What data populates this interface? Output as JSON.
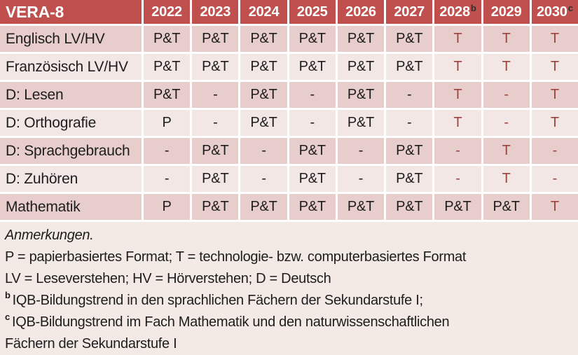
{
  "colors": {
    "header_bg": "#C0504D",
    "band_dark": "#E7CDCB",
    "band_light": "#F3E7E5",
    "notes_bg": "#F3EAE6",
    "red_text": "#9E423D",
    "header_text": "#FFFFFF",
    "body_text": "#1D1D1D",
    "border": "#FFFFFF"
  },
  "table": {
    "corner_label": "VERA-8",
    "columns": [
      {
        "label": "2022",
        "sup": ""
      },
      {
        "label": "2023",
        "sup": ""
      },
      {
        "label": "2024",
        "sup": ""
      },
      {
        "label": "2025",
        "sup": ""
      },
      {
        "label": "2026",
        "sup": ""
      },
      {
        "label": "2027",
        "sup": ""
      },
      {
        "label": "2028",
        "sup": "b"
      },
      {
        "label": "2029",
        "sup": ""
      },
      {
        "label": "2030",
        "sup": "c"
      }
    ],
    "rows": [
      {
        "label": "Englisch LV/HV",
        "values": [
          "P&T",
          "P&T",
          "P&T",
          "P&T",
          "P&T",
          "P&T",
          "T",
          "T",
          "T"
        ],
        "red": [
          false,
          false,
          false,
          false,
          false,
          false,
          true,
          true,
          true
        ]
      },
      {
        "label": "Französisch LV/HV",
        "values": [
          "P&T",
          "P&T",
          "P&T",
          "P&T",
          "P&T",
          "P&T",
          "T",
          "T",
          "T"
        ],
        "red": [
          false,
          false,
          false,
          false,
          false,
          false,
          true,
          true,
          true
        ]
      },
      {
        "label": "D: Lesen",
        "values": [
          "P&T",
          "-",
          "P&T",
          "-",
          "P&T",
          "-",
          "T",
          "-",
          "T"
        ],
        "red": [
          false,
          false,
          false,
          false,
          false,
          false,
          true,
          true,
          true
        ]
      },
      {
        "label": "D: Orthografie",
        "values": [
          "P",
          "-",
          "P&T",
          "-",
          "P&T",
          "-",
          "T",
          "-",
          "T"
        ],
        "red": [
          false,
          false,
          false,
          false,
          false,
          false,
          true,
          true,
          true
        ]
      },
      {
        "label": "D: Sprachgebrauch",
        "values": [
          "-",
          "P&T",
          "-",
          "P&T",
          "-",
          "P&T",
          "-",
          "T",
          "-"
        ],
        "red": [
          false,
          false,
          false,
          false,
          false,
          false,
          true,
          true,
          true
        ]
      },
      {
        "label": "D: Zuhören",
        "values": [
          "-",
          "P&T",
          "-",
          "P&T",
          "-",
          "P&T",
          "-",
          "T",
          "-"
        ],
        "red": [
          false,
          false,
          false,
          false,
          false,
          false,
          true,
          true,
          true
        ]
      },
      {
        "label": "Mathematik",
        "values": [
          "P",
          "P&T",
          "P&T",
          "P&T",
          "P&T",
          "P&T",
          "P&T",
          "P&T",
          "T"
        ],
        "red": [
          false,
          false,
          false,
          false,
          false,
          false,
          false,
          false,
          true
        ]
      }
    ]
  },
  "notes": {
    "lines": [
      {
        "marker": "",
        "text": "Anmerkungen.",
        "italic": true
      },
      {
        "marker": "",
        "text": "P = papierbasiertes Format; T = technologie- bzw. computerbasiertes Format",
        "italic": false
      },
      {
        "marker": "",
        "text": "LV = Leseverstehen; HV = Hörverstehen; D = Deutsch",
        "italic": false
      },
      {
        "marker": "b",
        "text": "IQB-Bildungstrend in den sprachlichen Fächern der Sekundarstufe I;",
        "italic": false
      },
      {
        "marker": "c",
        "text": "IQB-Bildungstrend im Fach Mathematik und den naturwissenschaftlichen",
        "italic": false
      },
      {
        "marker": "",
        "text": "Fächern der Sekundarstufe I",
        "italic": false
      }
    ]
  }
}
